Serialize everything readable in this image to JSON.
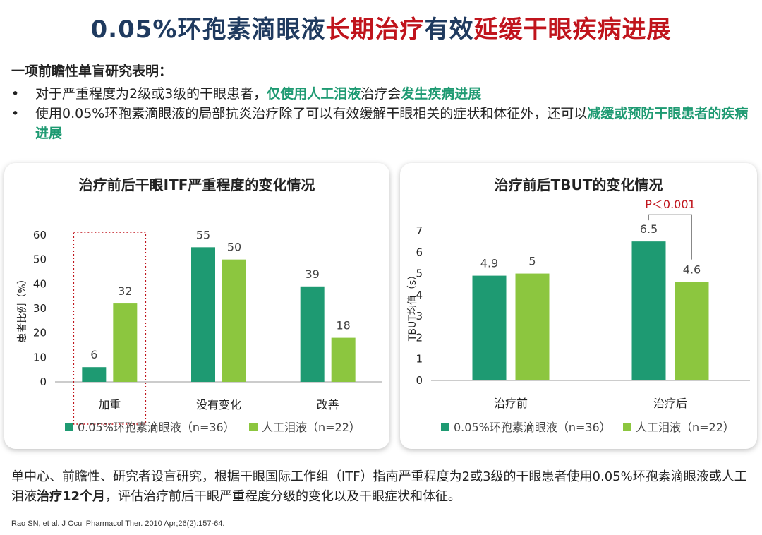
{
  "title": {
    "part1": "0.05%环孢素滴眼液",
    "part2": "长期治疗",
    "part3": "有效",
    "part4": "延缓干眼疾病进展"
  },
  "intro": {
    "heading": "一项前瞻性单盲研究表明：",
    "bullet_symbol": "•",
    "b1": {
      "a": "对于严重程度为2级或3级的干眼患者，",
      "b": "仅使用人工泪液",
      "c": "治疗会",
      "d": "发生疾病进展"
    },
    "b2": {
      "a": "使用0.05%环孢素滴眼液的局部抗炎治疗除了可以有效缓解干眼相关的症状和体征外，还可以",
      "b": "减缓或预防干眼患者的疾病进展"
    }
  },
  "colors": {
    "dark_green": "#1e9a72",
    "light_green": "#8cc63f",
    "navy": "#1f3a5f",
    "red": "#c0141c"
  },
  "chart_data": [
    {
      "type": "bar",
      "title": "治疗前后干眼ITF严重程度的变化情况",
      "categories": [
        "加重",
        "没有变化",
        "改善"
      ],
      "series": [
        {
          "name": "0.05%环孢素滴眼液（n=36）",
          "values": [
            6,
            55,
            39
          ]
        },
        {
          "name": "人工泪液（n=22）",
          "values": [
            32,
            50,
            18
          ]
        }
      ],
      "ylabel": "患者比例（%）",
      "ylim": [
        0,
        60
      ],
      "yticks": [
        0,
        10,
        20,
        30,
        40,
        50,
        60
      ],
      "highlight_category": "加重",
      "legend_position": "bottom"
    },
    {
      "type": "bar",
      "title": "治疗前后TBUT的变化情况",
      "categories": [
        "治疗前",
        "治疗后"
      ],
      "series": [
        {
          "name": "0.05%环孢素滴眼液（n=36）",
          "values": [
            4.9,
            6.5
          ]
        },
        {
          "name": "人工泪液（n=22）",
          "values": [
            5,
            4.6
          ]
        }
      ],
      "ylabel": "TBUT均值（s）",
      "ylim": [
        0,
        7
      ],
      "yticks": [
        0,
        1,
        2,
        3,
        4,
        5,
        6,
        7
      ],
      "annotation": "P＜0.001",
      "legend_position": "bottom"
    }
  ],
  "footer": {
    "a": "单中心、前瞻性、研究者设盲研究，根据干眼国际工作组（ITF）指南严重程度为2或3级的干眼患者使用0.05%环孢素滴眼液或人工泪液",
    "b": "治疗12个月",
    "c": "，评估治疗前后干眼严重程度分级的变化以及干眼症状和体征。"
  },
  "reference": "Rao SN, et al. J Ocul Pharmacol Ther. 2010 Apr;26(2):157-64."
}
